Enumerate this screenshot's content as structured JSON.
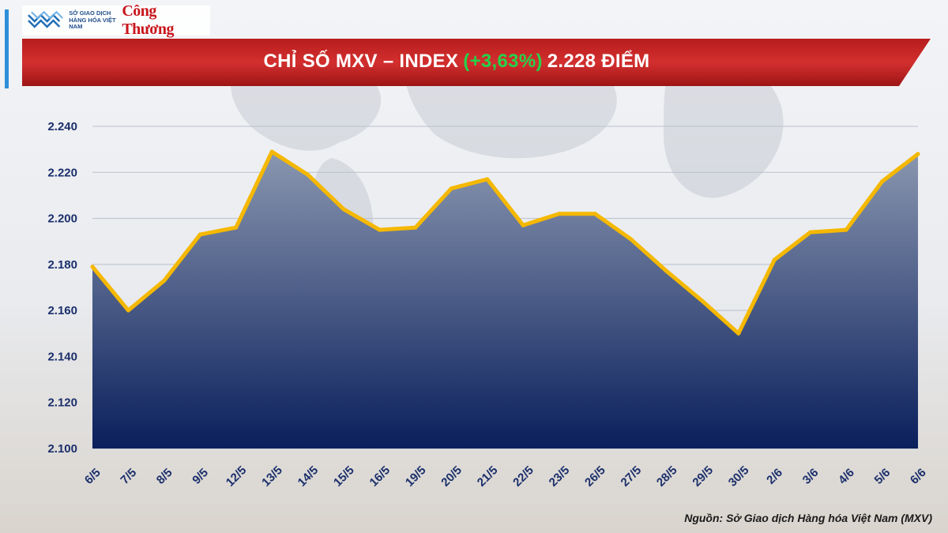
{
  "header": {
    "org_name": "SỞ GIAO DỊCH HÀNG HÓA VIỆT NAM",
    "media_logo": "Công Thương",
    "title_prefix": "CHỈ SỐ MXV – INDEX",
    "title_change": "(+3,63%)",
    "title_suffix": "2.228 ĐIỂM"
  },
  "colors": {
    "banner": "#c62828",
    "line": "#f5b800",
    "area_top": "#8a97b0",
    "area_bottom": "#0a1f5c",
    "change_green": "#27d14a",
    "axis_text": "#1b2f6b"
  },
  "chart_data": {
    "type": "area",
    "title": "CHỈ SỐ MXV – INDEX (+3,63%) 2.228 ĐIỂM",
    "categories": [
      "6/5",
      "7/5",
      "8/5",
      "9/5",
      "12/5",
      "13/5",
      "14/5",
      "15/5",
      "16/5",
      "19/5",
      "20/5",
      "21/5",
      "22/5",
      "23/5",
      "26/5",
      "27/5",
      "28/5",
      "29/5",
      "30/5",
      "2/6",
      "3/6",
      "4/6",
      "5/6",
      "6/6"
    ],
    "values": [
      2179,
      2160,
      2173,
      2193,
      2196,
      2229,
      2219,
      2204,
      2195,
      2196,
      2213,
      2217,
      2197,
      2202,
      2202,
      2191,
      2177,
      2164,
      2150,
      2182,
      2194,
      2195,
      2216,
      2228
    ],
    "ylim": [
      2100,
      2240
    ],
    "yticks": [
      "2.100",
      "2.120",
      "2.140",
      "2.160",
      "2.180",
      "2.200",
      "2.220",
      "2.240"
    ],
    "ytick_values": [
      2100,
      2120,
      2140,
      2160,
      2180,
      2200,
      2220,
      2240
    ],
    "grid": true,
    "xlabel": "",
    "ylabel": ""
  },
  "footer": {
    "source": "Nguồn: Sở Giao dịch Hàng hóa Việt Nam (MXV)"
  }
}
